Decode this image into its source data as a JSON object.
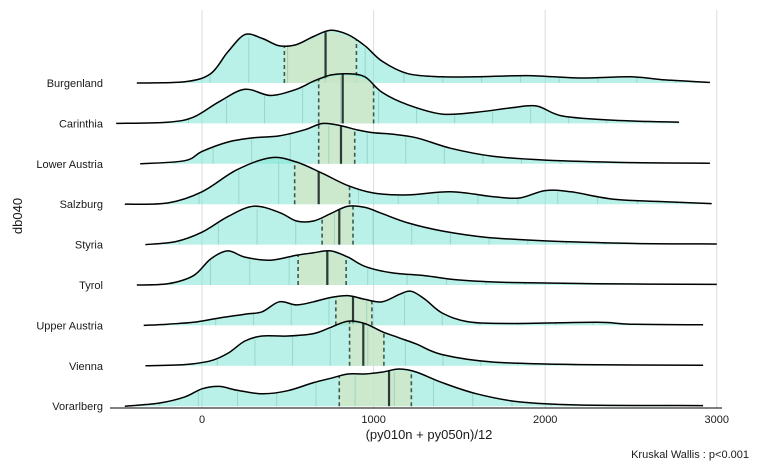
{
  "chart_data": {
    "type": "ridgeline",
    "xlabel": "(py010n + py050n)/12",
    "ylabel": "db040",
    "caption": "Kruskal Wallis : p<0.001",
    "xlim": [
      -520,
      3050
    ],
    "xticks": [
      0,
      1000,
      2000,
      3000
    ],
    "grid": "vertical",
    "fill_color": "#7fe6d6",
    "fill_opacity": 0.55,
    "iqr_fill_color": "#cfe6c8",
    "outline_color": "#000000",
    "categories": [
      "Burgenland",
      "Carinthia",
      "Lower Austria",
      "Salzburg",
      "Styria",
      "Tyrol",
      "Upper Austria",
      "Vienna",
      "Vorarlberg"
    ],
    "series": [
      {
        "name": "Burgenland",
        "xrange": [
          -380,
          2960
        ],
        "median": 720,
        "q1": 480,
        "q3": 900,
        "density": [
          [
            -380,
            0
          ],
          [
            -100,
            0.02
          ],
          [
            50,
            0.15
          ],
          [
            150,
            0.5
          ],
          [
            250,
            0.78
          ],
          [
            350,
            0.72
          ],
          [
            450,
            0.6
          ],
          [
            550,
            0.62
          ],
          [
            650,
            0.75
          ],
          [
            750,
            0.85
          ],
          [
            850,
            0.78
          ],
          [
            950,
            0.6
          ],
          [
            1050,
            0.35
          ],
          [
            1200,
            0.15
          ],
          [
            1400,
            0.1
          ],
          [
            1600,
            0.1
          ],
          [
            1900,
            0.12
          ],
          [
            2200,
            0.08
          ],
          [
            2500,
            0.1
          ],
          [
            2700,
            0.05
          ],
          [
            2960,
            0.01
          ]
        ]
      },
      {
        "name": "Carinthia",
        "xrange": [
          -500,
          2780
        ],
        "median": 820,
        "q1": 680,
        "q3": 1000,
        "density": [
          [
            -500,
            0
          ],
          [
            -200,
            0.02
          ],
          [
            -50,
            0.1
          ],
          [
            100,
            0.35
          ],
          [
            250,
            0.55
          ],
          [
            400,
            0.45
          ],
          [
            550,
            0.55
          ],
          [
            650,
            0.68
          ],
          [
            750,
            0.78
          ],
          [
            850,
            0.8
          ],
          [
            950,
            0.75
          ],
          [
            1050,
            0.5
          ],
          [
            1200,
            0.3
          ],
          [
            1400,
            0.15
          ],
          [
            1600,
            0.18
          ],
          [
            1800,
            0.25
          ],
          [
            1950,
            0.28
          ],
          [
            2100,
            0.12
          ],
          [
            2400,
            0.05
          ],
          [
            2780,
            0.02
          ]
        ]
      },
      {
        "name": "Lower Austria",
        "xrange": [
          -360,
          2960
        ],
        "median": 810,
        "q1": 680,
        "q3": 890,
        "density": [
          [
            -360,
            0
          ],
          [
            -100,
            0.05
          ],
          [
            0,
            0.2
          ],
          [
            150,
            0.35
          ],
          [
            300,
            0.42
          ],
          [
            450,
            0.45
          ],
          [
            600,
            0.55
          ],
          [
            700,
            0.65
          ],
          [
            800,
            0.62
          ],
          [
            900,
            0.55
          ],
          [
            1000,
            0.5
          ],
          [
            1100,
            0.48
          ],
          [
            1250,
            0.42
          ],
          [
            1450,
            0.25
          ],
          [
            1700,
            0.12
          ],
          [
            2000,
            0.06
          ],
          [
            2500,
            0.02
          ],
          [
            2960,
            0.01
          ]
        ]
      },
      {
        "name": "Salzburg",
        "xrange": [
          -450,
          2970
        ],
        "median": 680,
        "q1": 540,
        "q3": 860,
        "density": [
          [
            -450,
            0
          ],
          [
            -200,
            0.02
          ],
          [
            0,
            0.2
          ],
          [
            200,
            0.55
          ],
          [
            400,
            0.75
          ],
          [
            550,
            0.68
          ],
          [
            700,
            0.5
          ],
          [
            850,
            0.3
          ],
          [
            1000,
            0.18
          ],
          [
            1200,
            0.15
          ],
          [
            1450,
            0.2
          ],
          [
            1700,
            0.12
          ],
          [
            1850,
            0.1
          ],
          [
            2000,
            0.22
          ],
          [
            2150,
            0.2
          ],
          [
            2400,
            0.08
          ],
          [
            2700,
            0.04
          ],
          [
            2970,
            0.01
          ]
        ]
      },
      {
        "name": "Styria",
        "xrange": [
          -330,
          3000
        ],
        "median": 800,
        "q1": 700,
        "q3": 880,
        "density": [
          [
            -330,
            0
          ],
          [
            -150,
            0.05
          ],
          [
            0,
            0.2
          ],
          [
            150,
            0.45
          ],
          [
            300,
            0.62
          ],
          [
            450,
            0.52
          ],
          [
            550,
            0.38
          ],
          [
            650,
            0.38
          ],
          [
            750,
            0.5
          ],
          [
            850,
            0.62
          ],
          [
            950,
            0.6
          ],
          [
            1050,
            0.5
          ],
          [
            1200,
            0.35
          ],
          [
            1400,
            0.22
          ],
          [
            1650,
            0.12
          ],
          [
            2000,
            0.06
          ],
          [
            2500,
            0.02
          ],
          [
            3000,
            0.01
          ]
        ]
      },
      {
        "name": "Tyrol",
        "xrange": [
          -380,
          3000
        ],
        "median": 730,
        "q1": 560,
        "q3": 840,
        "density": [
          [
            -380,
            0
          ],
          [
            -200,
            0.02
          ],
          [
            -50,
            0.15
          ],
          [
            50,
            0.42
          ],
          [
            150,
            0.55
          ],
          [
            250,
            0.45
          ],
          [
            400,
            0.4
          ],
          [
            550,
            0.48
          ],
          [
            650,
            0.52
          ],
          [
            750,
            0.55
          ],
          [
            850,
            0.45
          ],
          [
            950,
            0.3
          ],
          [
            1100,
            0.2
          ],
          [
            1300,
            0.15
          ],
          [
            1500,
            0.08
          ],
          [
            1800,
            0.04
          ],
          [
            2300,
            0.02
          ],
          [
            3000,
            0.01
          ]
        ]
      },
      {
        "name": "Upper Austria",
        "xrange": [
          -340,
          2920
        ],
        "median": 880,
        "q1": 780,
        "q3": 990,
        "density": [
          [
            -340,
            0
          ],
          [
            -200,
            0.02
          ],
          [
            -50,
            0.05
          ],
          [
            100,
            0.12
          ],
          [
            250,
            0.18
          ],
          [
            350,
            0.22
          ],
          [
            450,
            0.38
          ],
          [
            550,
            0.33
          ],
          [
            650,
            0.38
          ],
          [
            750,
            0.45
          ],
          [
            850,
            0.48
          ],
          [
            950,
            0.42
          ],
          [
            1050,
            0.38
          ],
          [
            1150,
            0.5
          ],
          [
            1220,
            0.55
          ],
          [
            1300,
            0.42
          ],
          [
            1400,
            0.2
          ],
          [
            1550,
            0.06
          ],
          [
            1800,
            0.03
          ],
          [
            2300,
            0.05
          ],
          [
            2500,
            0.02
          ],
          [
            2920,
            0.01
          ]
        ]
      },
      {
        "name": "Vienna",
        "xrange": [
          -330,
          2920
        ],
        "median": 940,
        "q1": 860,
        "q3": 1060,
        "density": [
          [
            -330,
            0
          ],
          [
            -100,
            0.02
          ],
          [
            50,
            0.08
          ],
          [
            150,
            0.2
          ],
          [
            250,
            0.4
          ],
          [
            350,
            0.48
          ],
          [
            500,
            0.48
          ],
          [
            650,
            0.52
          ],
          [
            750,
            0.62
          ],
          [
            850,
            0.72
          ],
          [
            950,
            0.68
          ],
          [
            1050,
            0.55
          ],
          [
            1150,
            0.45
          ],
          [
            1250,
            0.35
          ],
          [
            1400,
            0.18
          ],
          [
            1700,
            0.06
          ],
          [
            2200,
            0.02
          ],
          [
            2920,
            0.01
          ]
        ]
      },
      {
        "name": "Vorarlberg",
        "xrange": [
          -450,
          2920
        ],
        "median": 1090,
        "q1": 800,
        "q3": 1220,
        "density": [
          [
            -450,
            0
          ],
          [
            -250,
            0.05
          ],
          [
            -100,
            0.15
          ],
          [
            0,
            0.28
          ],
          [
            100,
            0.32
          ],
          [
            200,
            0.26
          ],
          [
            350,
            0.2
          ],
          [
            500,
            0.25
          ],
          [
            650,
            0.38
          ],
          [
            750,
            0.45
          ],
          [
            850,
            0.52
          ],
          [
            950,
            0.52
          ],
          [
            1050,
            0.55
          ],
          [
            1150,
            0.6
          ],
          [
            1250,
            0.55
          ],
          [
            1400,
            0.38
          ],
          [
            1600,
            0.2
          ],
          [
            1850,
            0.07
          ],
          [
            2200,
            0.02
          ],
          [
            2920,
            0.01
          ]
        ]
      }
    ]
  }
}
